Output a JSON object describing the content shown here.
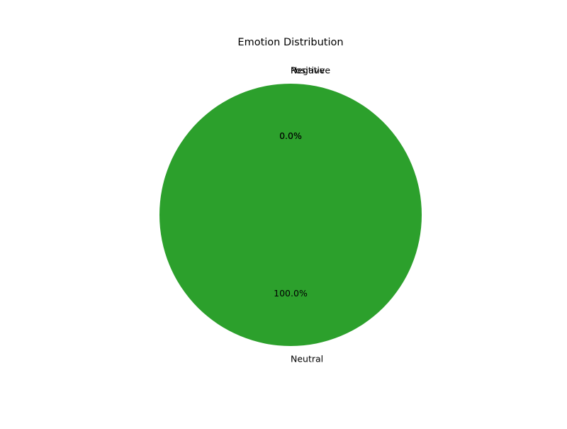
{
  "chart_data": {
    "type": "pie",
    "title": "Emotion Distribution",
    "slices": [
      {
        "label": "Positive",
        "value": 0,
        "pct_label": "0.0%",
        "color": "#1f77b4"
      },
      {
        "label": "Negative",
        "value": 0,
        "pct_label": "0.0%",
        "color": "#ff7f0e"
      },
      {
        "label": "Neutral",
        "value": 100,
        "pct_label": "100.0%",
        "color": "#2ca02c"
      }
    ],
    "legend": false
  }
}
